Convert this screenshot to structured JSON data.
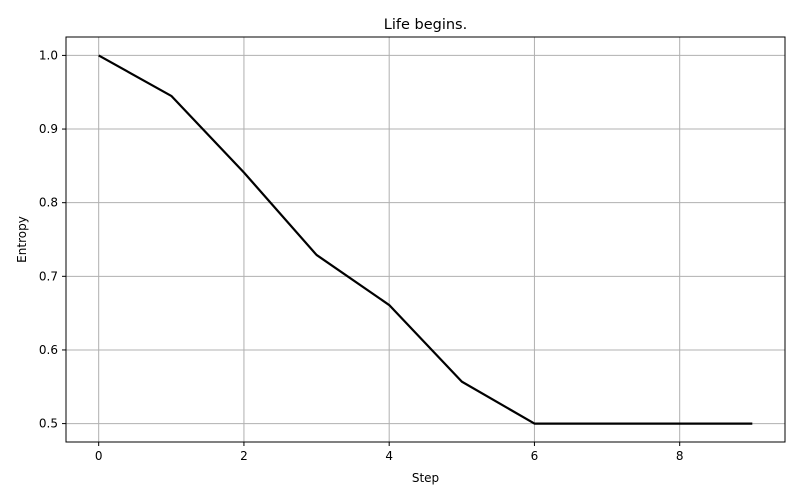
{
  "chart_data": {
    "type": "line",
    "title": "Life begins.",
    "xlabel": "Step",
    "ylabel": "Entropy",
    "xlim": [
      -0.45,
      9.45
    ],
    "ylim": [
      0.475,
      1.025
    ],
    "xticks": [
      0,
      2,
      4,
      6,
      8
    ],
    "yticks": [
      0.5,
      0.6,
      0.7,
      0.8,
      0.9,
      1.0
    ],
    "xtick_labels": [
      "0",
      "2",
      "4",
      "6",
      "8"
    ],
    "ytick_labels": [
      "0.5",
      "0.6",
      "0.7",
      "0.8",
      "0.9",
      "1.0"
    ],
    "grid": true,
    "series": [
      {
        "color": "#000000",
        "x": [
          0,
          1,
          2,
          3,
          4,
          5,
          6,
          7,
          8,
          9
        ],
        "y": [
          1.0,
          0.945,
          0.841,
          0.729,
          0.661,
          0.557,
          0.5,
          0.5,
          0.5,
          0.5
        ]
      }
    ]
  }
}
